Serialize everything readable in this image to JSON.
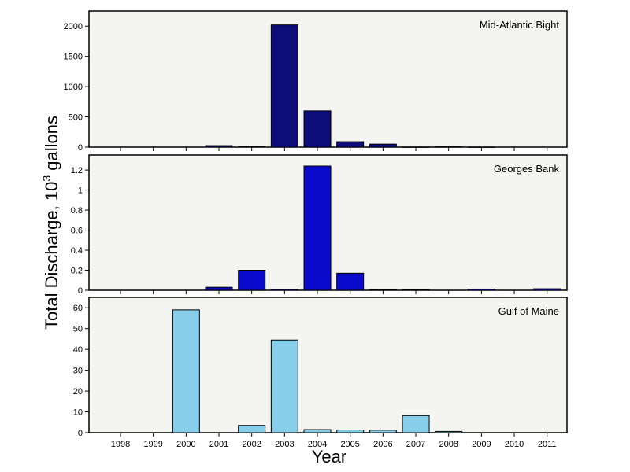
{
  "chart_data": {
    "type": "bar",
    "xlabel": "Year",
    "ylabel": "Total Discharge, 10",
    "ylabel_superscript": "3",
    "ylabel_suffix": " gallons",
    "categories": [
      "1998",
      "1999",
      "2000",
      "2001",
      "2002",
      "2003",
      "2004",
      "2005",
      "2006",
      "2007",
      "2008",
      "2009",
      "2010",
      "2011"
    ],
    "panels": [
      {
        "name": "Mid-Atlantic Bight",
        "color": "#0d0d7a",
        "ylim": [
          0,
          2250
        ],
        "yticks": [
          0,
          500,
          1000,
          1500,
          2000
        ],
        "ytick_labels": [
          "0",
          "500",
          "1000",
          "1500",
          "2000"
        ],
        "values": [
          0,
          0,
          0,
          25,
          15,
          2020,
          600,
          90,
          50,
          2,
          5,
          2,
          0,
          0
        ]
      },
      {
        "name": "Georges Bank",
        "color": "#0a0acc",
        "ylim": [
          0,
          1.35
        ],
        "yticks": [
          0,
          0.2,
          0.4,
          0.6,
          0.8,
          1.0,
          1.2
        ],
        "ytick_labels": [
          "0",
          "0.2",
          "0.4",
          "0.6",
          "0.8",
          "1",
          "1.2"
        ],
        "values": [
          0,
          0,
          0,
          0.03,
          0.2,
          0.01,
          1.24,
          0.17,
          0.005,
          0.005,
          0,
          0.012,
          0,
          0.015
        ]
      },
      {
        "name": "Gulf of Maine",
        "color": "#87ceeb",
        "ylim": [
          0,
          65
        ],
        "yticks": [
          0,
          10,
          20,
          30,
          40,
          50,
          60
        ],
        "ytick_labels": [
          "0",
          "10",
          "20",
          "30",
          "40",
          "50",
          "60"
        ],
        "values": [
          0,
          0,
          59,
          0,
          3.5,
          44.5,
          1.5,
          1.3,
          1.2,
          8.2,
          0.6,
          0,
          0,
          0
        ]
      }
    ]
  }
}
